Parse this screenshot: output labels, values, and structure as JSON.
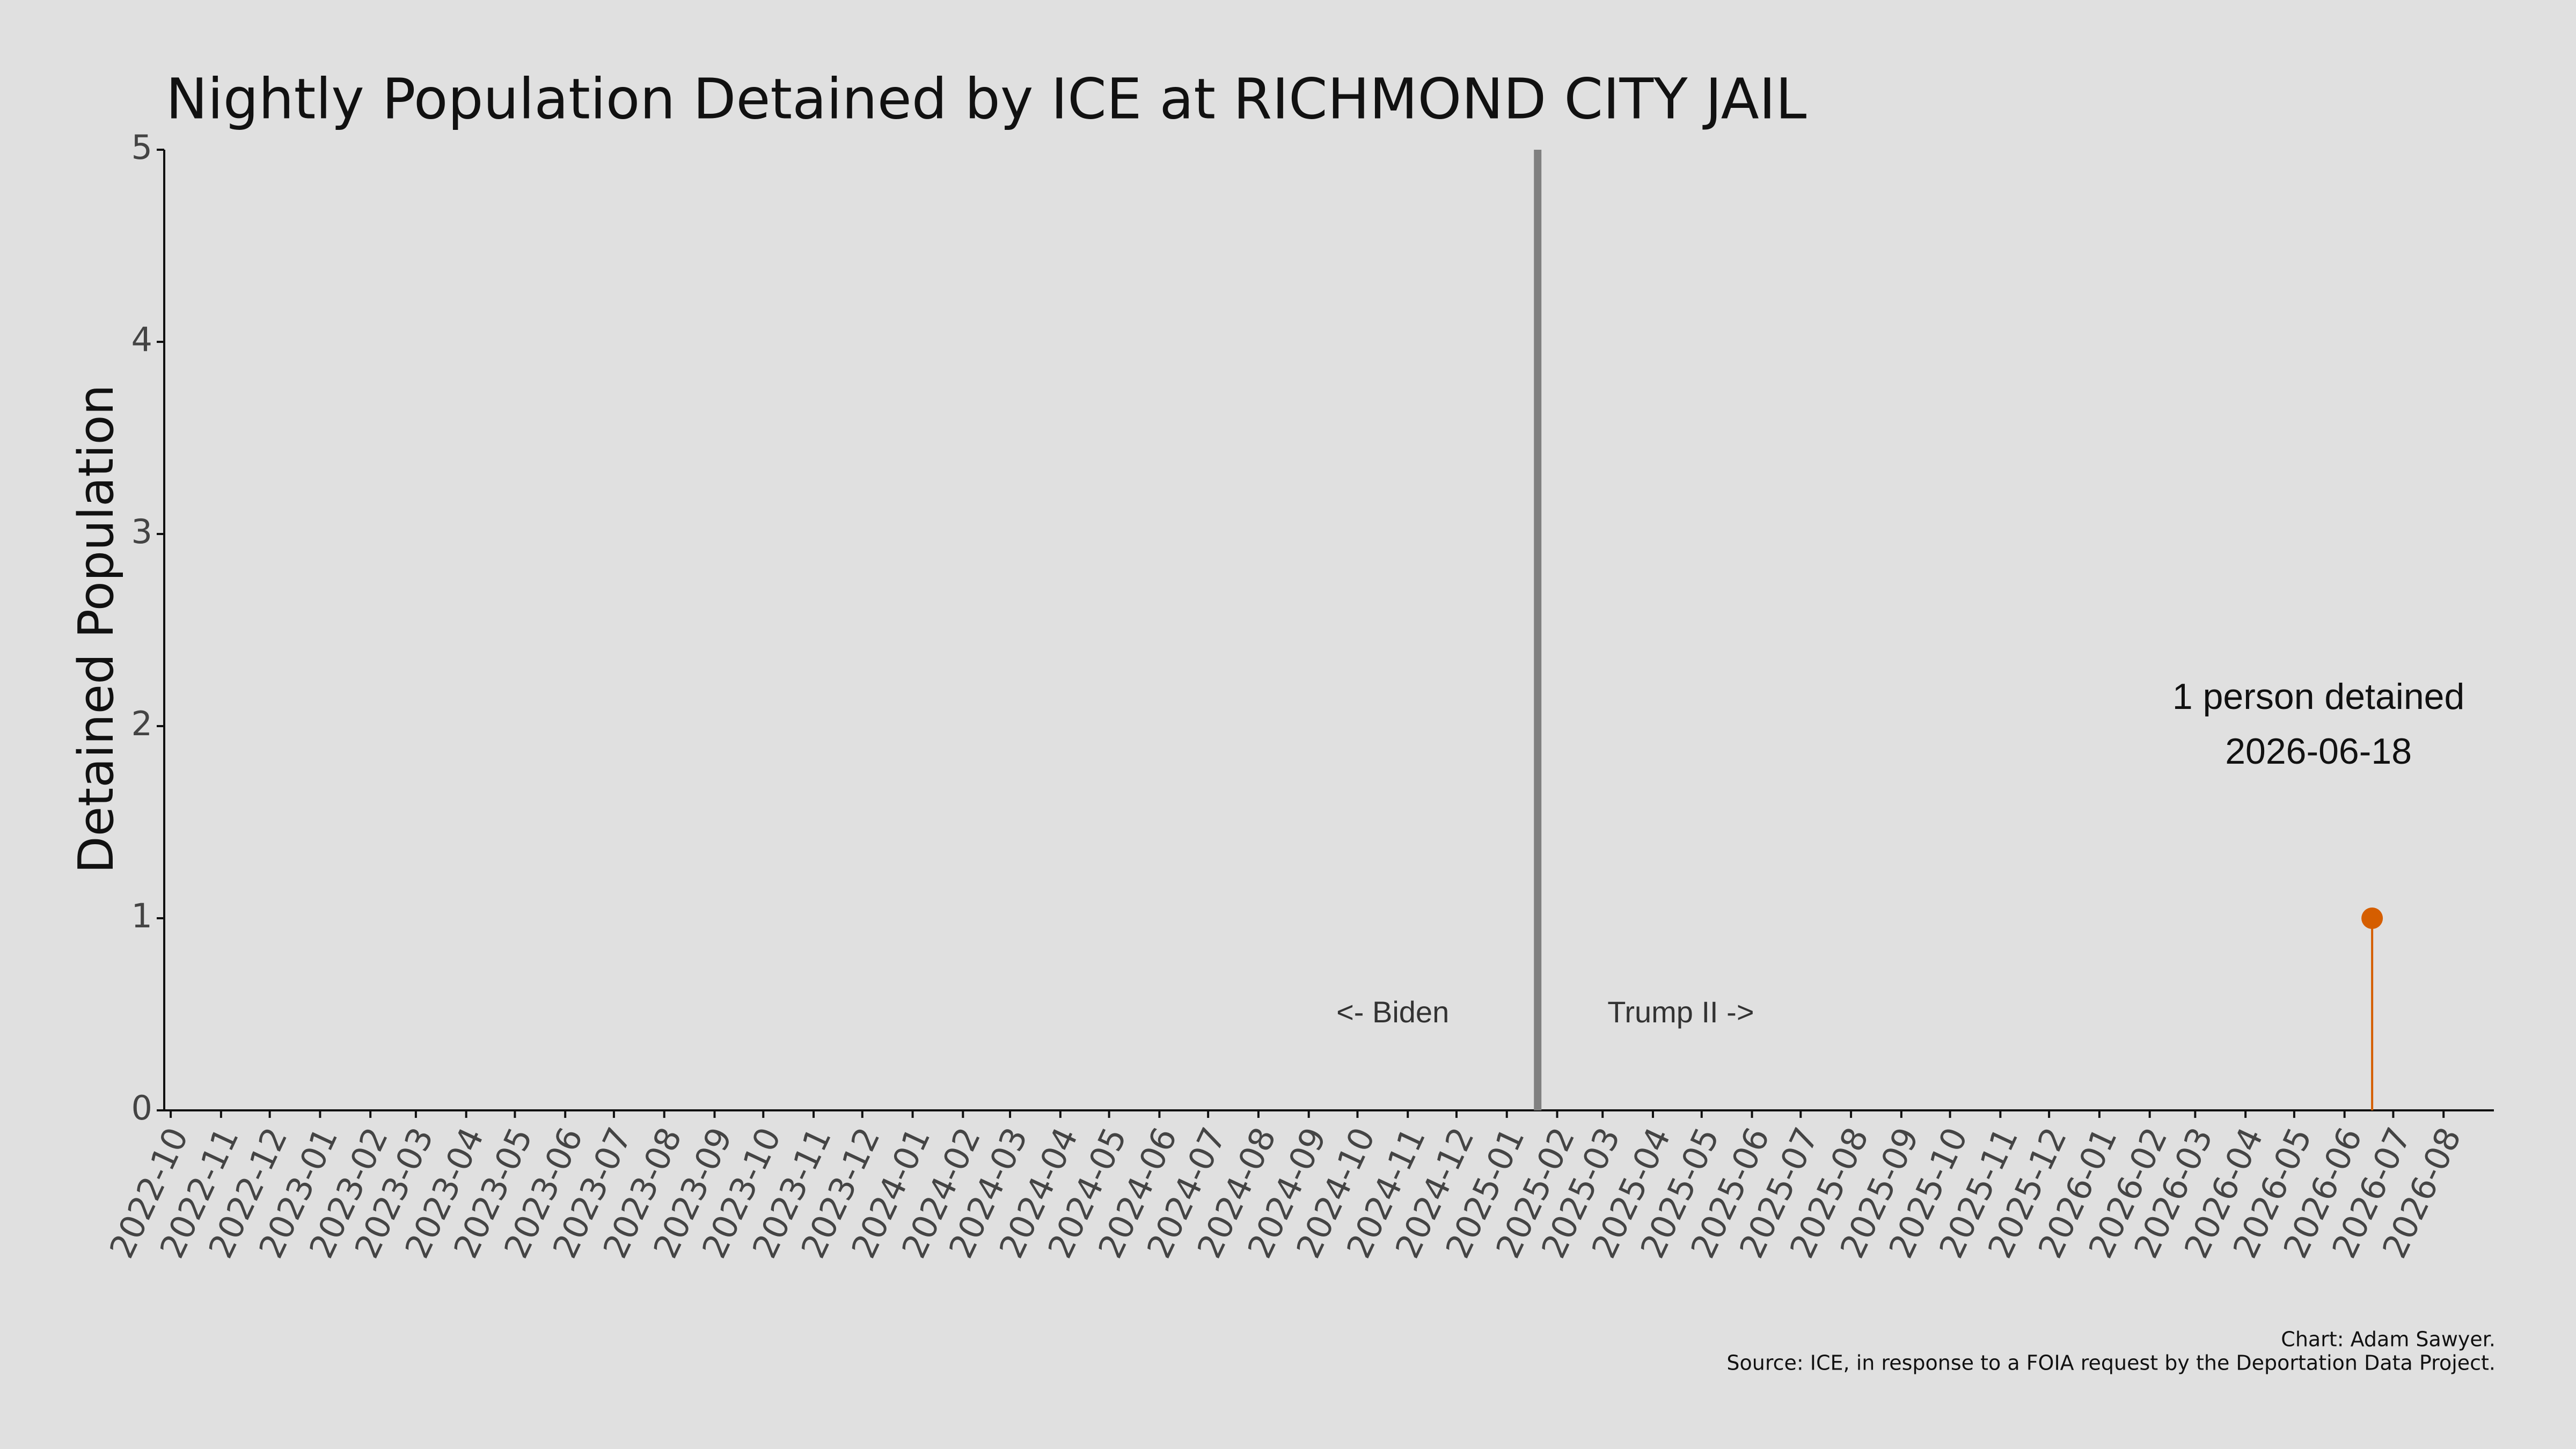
{
  "chart_data": {
    "type": "stem",
    "title": "Nightly Population Detained by ICE at RICHMOND CITY JAIL",
    "y_label": "Detained Population",
    "x": [
      "2026-06-18"
    ],
    "values": [
      1
    ],
    "color": "#d55e00",
    "xlim": [
      "2022-09-27",
      "2026-09-01"
    ],
    "xticks": [
      "2022-10",
      "2022-11",
      "2022-12",
      "2023-01",
      "2023-02",
      "2023-03",
      "2023-04",
      "2023-05",
      "2023-06",
      "2023-07",
      "2023-08",
      "2023-09",
      "2023-10",
      "2023-11",
      "2023-12",
      "2024-01",
      "2024-02",
      "2024-03",
      "2024-04",
      "2024-05",
      "2024-06",
      "2024-07",
      "2024-08",
      "2024-09",
      "2024-10",
      "2024-11",
      "2024-12",
      "2025-01",
      "2025-02",
      "2025-03",
      "2025-04",
      "2025-05",
      "2025-06",
      "2025-07",
      "2025-08",
      "2025-09",
      "2025-10",
      "2025-11",
      "2025-12",
      "2026-01",
      "2026-02",
      "2026-03",
      "2026-04",
      "2026-05",
      "2026-06",
      "2026-07",
      "2026-08"
    ],
    "ylim": [
      0,
      5
    ],
    "yticks": [
      0,
      1,
      2,
      3,
      4,
      5
    ],
    "divider": {
      "x": "2025-01-20",
      "color": "#808080",
      "left_label": "<- Biden",
      "right_label": "Trump II ->"
    },
    "annotation": "1 person detained",
    "footer": [
      "Chart: Adam Sawyer.",
      "Source: ICE, in response to a FOIA request by the Deportation Data Project."
    ]
  }
}
